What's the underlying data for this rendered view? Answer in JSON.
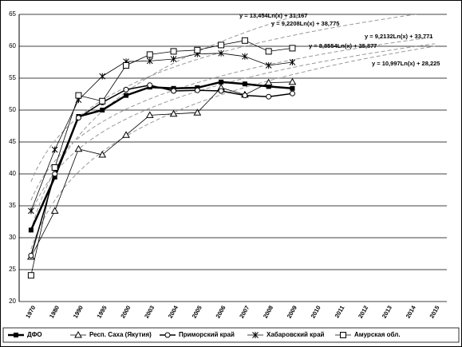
{
  "chart_data": {
    "type": "line",
    "categories": [
      "1970",
      "1980",
      "1990",
      "1995",
      "2000",
      "2003",
      "2004",
      "2005",
      "2006",
      "2007",
      "2008",
      "2009",
      "2010",
      "2011",
      "2012",
      "2013",
      "2014",
      "2015"
    ],
    "ylim": [
      20,
      65
    ],
    "yticks": [
      20,
      25,
      30,
      35,
      40,
      45,
      50,
      55,
      60,
      65
    ],
    "grid": true,
    "legend": "bottom",
    "series": [
      {
        "name": "ДФО",
        "color": "#000000",
        "marker": "square-filled",
        "line_width": 2.5,
        "values": [
          31.2,
          39.5,
          49,
          50,
          52.3,
          53.6,
          53.4,
          53.5,
          54.4,
          54.1,
          53.7,
          53.4,
          null,
          null,
          null,
          null,
          null,
          null
        ],
        "trend": {
          "a": 9.2132,
          "b": 33.771,
          "label": "y = 9,2132Ln(x) + 33,771"
        }
      },
      {
        "name": "Респ. Саха (Якутия)",
        "color": "#000000",
        "marker": "triangle",
        "line_width": 0.8,
        "values": [
          27,
          34.2,
          43.9,
          43,
          46.1,
          49.2,
          49.4,
          49.6,
          53.5,
          52.4,
          54.3,
          54.4,
          null,
          null,
          null,
          null,
          null,
          null
        ],
        "trend": {
          "a": 10.997,
          "b": 28.225,
          "label": "y = 10,997Ln(x) + 28,225"
        }
      },
      {
        "name": "Приморский край",
        "color": "#000000",
        "marker": "circle",
        "line_width": 1.5,
        "values": [
          27.2,
          40,
          48.8,
          51.2,
          53.2,
          53.9,
          53,
          53.1,
          53,
          52.3,
          52.1,
          52.6,
          null,
          null,
          null,
          null,
          null,
          null
        ],
        "trend": {
          "a": 8.8554,
          "b": 35.877,
          "label": "y = 8,8554Ln(x) + 35,877"
        }
      },
      {
        "name": "Хабаровский край",
        "color": "#000000",
        "marker": "star",
        "line_width": 0.8,
        "values": [
          34.2,
          43.8,
          51.6,
          55.3,
          57.6,
          57.7,
          58,
          58.8,
          58.9,
          58.4,
          57,
          57.5,
          null,
          null,
          null,
          null,
          null,
          null
        ],
        "trend": {
          "a": 9.2208,
          "b": 38.775,
          "label": "y = 9,2208Ln(x) + 38,775"
        }
      },
      {
        "name": "Амурская обл.",
        "color": "#000000",
        "marker": "square-open",
        "line_width": 0.8,
        "values": [
          24.1,
          41,
          52.3,
          51.4,
          57,
          58.7,
          59.2,
          59.4,
          60.2,
          60.9,
          59.2,
          59.7,
          null,
          null,
          null,
          null,
          null,
          null
        ],
        "trend": {
          "a": 13.454,
          "b": 31.167,
          "label": "y = 13,454Ln(x) + 31,167"
        }
      }
    ]
  }
}
